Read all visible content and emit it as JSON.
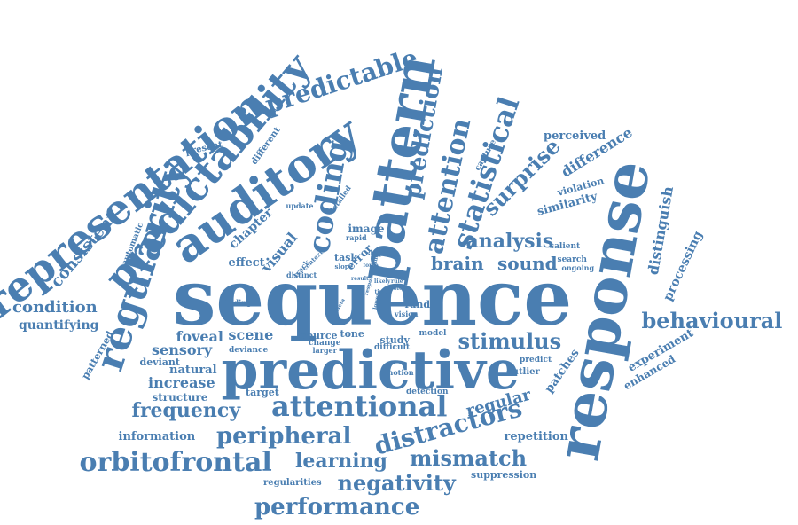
{
  "theme": {
    "word_color": "#4a7eb1",
    "background": "#ffffff"
  },
  "words": [
    "sequence",
    "response",
    "predictive",
    "pattern",
    "auditory",
    "representation",
    "predictability",
    "regularity",
    "coding",
    "statistical",
    "attention",
    "prediction",
    "predictable",
    "surprise",
    "analysis",
    "brain",
    "sound",
    "behavioural",
    "stimulus",
    "attentional",
    "peripheral",
    "distractors",
    "orbitofrontal",
    "learning",
    "mismatch",
    "negativity",
    "performance",
    "frequency",
    "regular",
    "condition",
    "quantifying",
    "consistent",
    "difference",
    "distinguish",
    "processing",
    "similarity",
    "experiment",
    "perceived",
    "patches",
    "enhanced",
    "repetition",
    "suppression",
    "information",
    "increase",
    "structure",
    "natural",
    "sensory",
    "foveal",
    "scene",
    "visual",
    "chapter",
    "effect",
    "patterned",
    "deviant",
    "tone",
    "study",
    "source",
    "change",
    "target",
    "detection",
    "notion",
    "outlier",
    "predict",
    "rand",
    "image",
    "task",
    "error",
    "violation",
    "salient",
    "search",
    "ongoing",
    "capture",
    "present",
    "different",
    "automatic",
    "update",
    "detailed",
    "track",
    "context",
    "rapid",
    "distinct",
    "finding",
    "model",
    "difficult",
    "larger",
    "deviance",
    "regularities",
    "slope",
    "shape",
    "vision",
    "role",
    "lower",
    "likely",
    "time",
    "force",
    "response-time",
    "result",
    "theta",
    "rule"
  ]
}
